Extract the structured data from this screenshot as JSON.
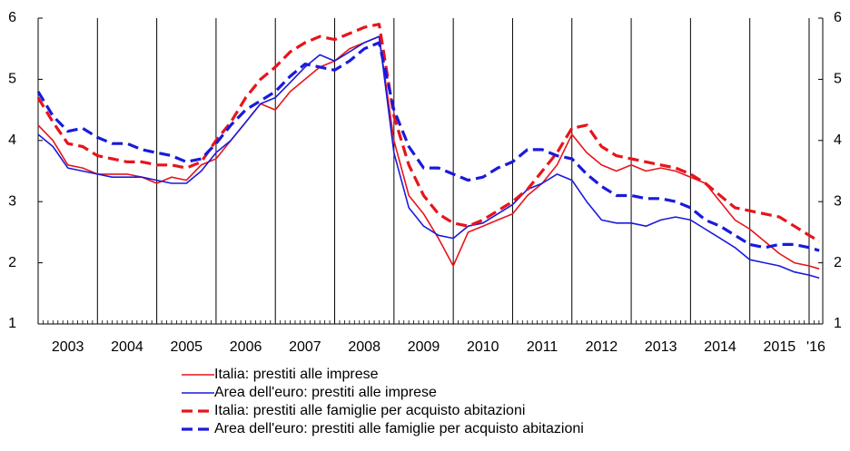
{
  "chart_data": {
    "type": "line",
    "x": [
      2003,
      2003.25,
      2003.5,
      2003.75,
      2004,
      2004.25,
      2004.5,
      2004.75,
      2005,
      2005.25,
      2005.5,
      2005.75,
      2006,
      2006.25,
      2006.5,
      2006.75,
      2007,
      2007.25,
      2007.5,
      2007.75,
      2008,
      2008.25,
      2008.5,
      2008.75,
      2009,
      2009.25,
      2009.5,
      2009.75,
      2010,
      2010.25,
      2010.5,
      2010.75,
      2011,
      2011.25,
      2011.5,
      2011.75,
      2012,
      2012.25,
      2012.5,
      2012.75,
      2013,
      2013.25,
      2013.5,
      2013.75,
      2014,
      2014.25,
      2014.5,
      2014.75,
      2015,
      2015.25,
      2015.5,
      2015.75,
      2016,
      2016.17
    ],
    "series": [
      {
        "name": "Italia: prestiti alle imprese",
        "color": "#e8141b",
        "dash": false,
        "values": [
          4.25,
          4.0,
          3.6,
          3.55,
          3.45,
          3.45,
          3.45,
          3.4,
          3.3,
          3.4,
          3.35,
          3.6,
          3.7,
          4.0,
          4.3,
          4.6,
          4.5,
          4.8,
          5.0,
          5.2,
          5.3,
          5.5,
          5.6,
          5.7,
          4.0,
          3.1,
          2.8,
          2.4,
          1.95,
          2.5,
          2.6,
          2.7,
          2.8,
          3.1,
          3.3,
          3.6,
          4.1,
          3.8,
          3.6,
          3.5,
          3.6,
          3.5,
          3.55,
          3.5,
          3.4,
          3.3,
          3.0,
          2.7,
          2.55,
          2.35,
          2.15,
          2.0,
          1.95,
          1.9
        ]
      },
      {
        "name": "Area dell'euro: prestiti alle imprese",
        "color": "#1a1adb",
        "dash": false,
        "values": [
          4.1,
          3.9,
          3.55,
          3.5,
          3.45,
          3.4,
          3.4,
          3.4,
          3.35,
          3.3,
          3.3,
          3.5,
          3.8,
          4.0,
          4.3,
          4.6,
          4.7,
          4.95,
          5.2,
          5.4,
          5.3,
          5.45,
          5.6,
          5.7,
          3.8,
          2.9,
          2.6,
          2.45,
          2.4,
          2.6,
          2.65,
          2.8,
          2.95,
          3.2,
          3.3,
          3.45,
          3.35,
          3.0,
          2.7,
          2.65,
          2.65,
          2.6,
          2.7,
          2.75,
          2.7,
          2.55,
          2.4,
          2.25,
          2.05,
          2.0,
          1.95,
          1.85,
          1.8,
          1.75
        ]
      },
      {
        "name": "Italia: prestiti alle famiglie per acquisto abitazioni",
        "color": "#e8141b",
        "dash": true,
        "values": [
          4.7,
          4.3,
          3.95,
          3.9,
          3.75,
          3.7,
          3.65,
          3.65,
          3.6,
          3.6,
          3.55,
          3.65,
          4.0,
          4.3,
          4.7,
          5.0,
          5.2,
          5.45,
          5.6,
          5.7,
          5.65,
          5.75,
          5.85,
          5.9,
          4.4,
          3.6,
          3.1,
          2.8,
          2.65,
          2.6,
          2.7,
          2.85,
          3.0,
          3.2,
          3.5,
          3.8,
          4.2,
          4.25,
          3.9,
          3.75,
          3.7,
          3.65,
          3.6,
          3.55,
          3.45,
          3.3,
          3.1,
          2.9,
          2.85,
          2.8,
          2.75,
          2.6,
          2.45,
          2.35
        ]
      },
      {
        "name": "Area dell'euro: prestiti alle famiglie per acquisto abitazioni",
        "color": "#1a1adb",
        "dash": true,
        "values": [
          4.8,
          4.4,
          4.15,
          4.2,
          4.05,
          3.95,
          3.95,
          3.85,
          3.8,
          3.75,
          3.65,
          3.7,
          3.95,
          4.25,
          4.5,
          4.65,
          4.8,
          5.05,
          5.25,
          5.2,
          5.15,
          5.3,
          5.5,
          5.6,
          4.5,
          3.9,
          3.55,
          3.55,
          3.45,
          3.35,
          3.4,
          3.55,
          3.65,
          3.85,
          3.85,
          3.75,
          3.7,
          3.45,
          3.25,
          3.1,
          3.1,
          3.05,
          3.05,
          3.0,
          2.9,
          2.7,
          2.6,
          2.45,
          2.3,
          2.25,
          2.3,
          2.3,
          2.25,
          2.2
        ]
      }
    ],
    "xlim": [
      2003,
      2016.23
    ],
    "xticks": [
      2003,
      2004,
      2005,
      2006,
      2007,
      2008,
      2009,
      2010,
      2011,
      2012,
      2013,
      2014,
      2015,
      {
        "value": 2016,
        "label": "'16"
      }
    ],
    "ylim": [
      1,
      6
    ],
    "yticks": [
      1,
      2,
      3,
      4,
      5,
      6
    ],
    "y2lim": [
      1,
      6
    ],
    "y2ticks": [
      1,
      2,
      3,
      4,
      5,
      6
    ],
    "grid": "x"
  }
}
